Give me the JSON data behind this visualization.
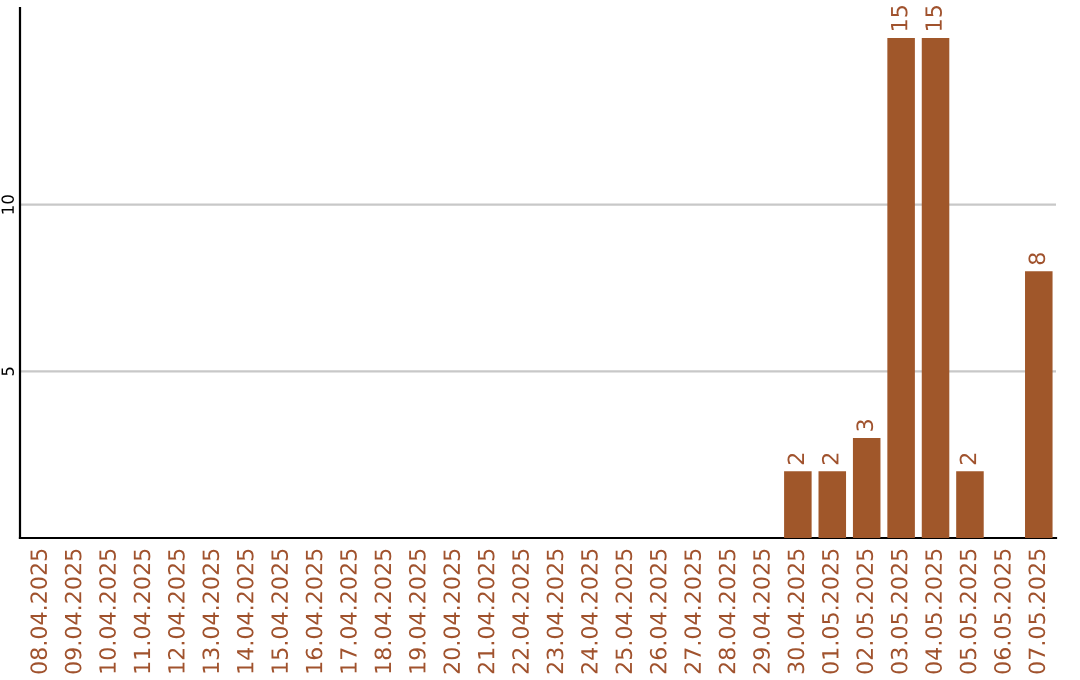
{
  "chart_data": {
    "type": "bar",
    "categories": [
      "08.04.2025",
      "09.04.2025",
      "10.04.2025",
      "11.04.2025",
      "12.04.2025",
      "13.04.2025",
      "14.04.2025",
      "15.04.2025",
      "16.04.2025",
      "17.04.2025",
      "18.04.2025",
      "19.04.2025",
      "20.04.2025",
      "21.04.2025",
      "22.04.2025",
      "23.04.2025",
      "24.04.2025",
      "25.04.2025",
      "26.04.2025",
      "27.04.2025",
      "28.04.2025",
      "29.04.2025",
      "30.04.2025",
      "01.05.2025",
      "02.05.2025",
      "03.05.2025",
      "04.05.2025",
      "05.05.2025",
      "06.05.2025",
      "07.05.2025"
    ],
    "values": [
      0,
      0,
      0,
      0,
      0,
      0,
      0,
      0,
      0,
      0,
      0,
      0,
      0,
      0,
      0,
      0,
      0,
      0,
      0,
      0,
      0,
      0,
      2,
      2,
      3,
      15,
      15,
      2,
      0,
      8
    ],
    "value_labels": [
      null,
      null,
      null,
      null,
      null,
      null,
      null,
      null,
      null,
      null,
      null,
      null,
      null,
      null,
      null,
      null,
      null,
      null,
      null,
      null,
      null,
      null,
      "2",
      "2",
      "3",
      "15",
      "15",
      "2",
      null,
      "8"
    ],
    "color": "#a0572a",
    "ylim": [
      0,
      15.9
    ],
    "yticks": [
      5,
      10
    ],
    "grid": "y"
  }
}
